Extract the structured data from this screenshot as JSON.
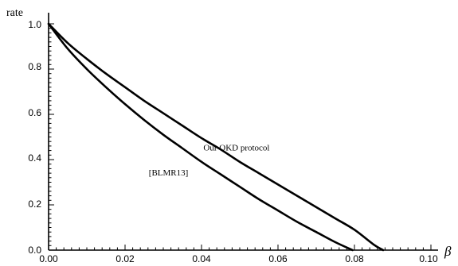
{
  "chart_data": {
    "type": "line",
    "ylabel": "rate",
    "xlabel": "β",
    "xlim": [
      0,
      0.1
    ],
    "ylim": [
      0,
      1.05
    ],
    "x_ticks": [
      "0.00",
      "0.02",
      "0.04",
      "0.06",
      "0.08",
      "0.10"
    ],
    "y_ticks": [
      "0.0",
      "0.2",
      "0.4",
      "0.6",
      "0.8",
      "1.0"
    ],
    "grid": false,
    "series": [
      {
        "name": "Our QKD protocol",
        "x": [
          0,
          0.005,
          0.01,
          0.015,
          0.02,
          0.025,
          0.03,
          0.035,
          0.04,
          0.045,
          0.05,
          0.055,
          0.06,
          0.065,
          0.07,
          0.075,
          0.08,
          0.085,
          0.0875
        ],
        "y": [
          1.0,
          0.915,
          0.845,
          0.78,
          0.72,
          0.66,
          0.605,
          0.55,
          0.495,
          0.445,
          0.39,
          0.34,
          0.29,
          0.24,
          0.19,
          0.14,
          0.09,
          0.025,
          0.0
        ]
      },
      {
        "name": "[BLMR13]",
        "x": [
          0,
          0.005,
          0.01,
          0.015,
          0.02,
          0.025,
          0.03,
          0.035,
          0.04,
          0.045,
          0.05,
          0.055,
          0.06,
          0.065,
          0.07,
          0.075,
          0.0795
        ],
        "y": [
          1.0,
          0.89,
          0.8,
          0.72,
          0.645,
          0.575,
          0.51,
          0.45,
          0.39,
          0.335,
          0.28,
          0.225,
          0.175,
          0.125,
          0.08,
          0.035,
          0.0
        ]
      }
    ],
    "annotations": [
      {
        "text": "Our QKD protocol",
        "x": 0.0405,
        "y": 0.44
      },
      {
        "text": "[BLMR13]",
        "x": 0.0262,
        "y": 0.33
      }
    ]
  }
}
